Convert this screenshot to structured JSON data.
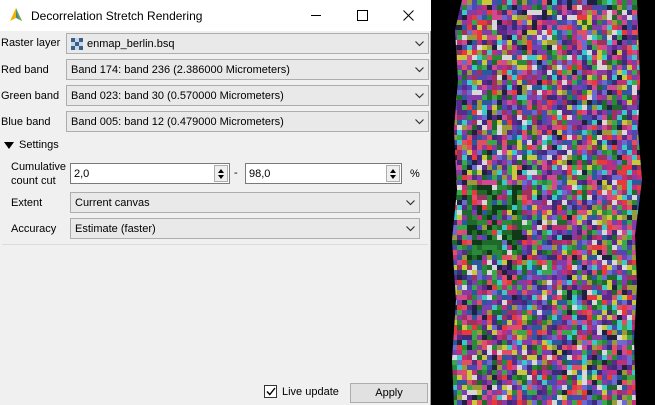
{
  "window": {
    "title": "Decorrelation Stretch Rendering",
    "accent_color": "#a3c83a"
  },
  "form": {
    "raster_layer": {
      "label": "Raster layer",
      "value": "enmap_berlin.bsq"
    },
    "red_band": {
      "label": "Red band",
      "value": "Band 174: band 236 (2.386000 Micrometers)"
    },
    "green_band": {
      "label": "Green band",
      "value": "Band 023: band 30 (0.570000 Micrometers)"
    },
    "blue_band": {
      "label": "Blue band",
      "value": "Band 005: band 12 (0.479000 Micrometers)"
    }
  },
  "settings": {
    "header": "Settings",
    "cumulative": {
      "label_line1": "Cumulative",
      "label_line2": "count cut",
      "min": "2,0",
      "separator": "-",
      "max": "98,0",
      "unit": "%"
    },
    "extent": {
      "label": "Extent",
      "value": "Current canvas"
    },
    "accuracy": {
      "label": "Accuracy",
      "value": "Estimate (faster)"
    }
  },
  "footer": {
    "live_update_label": "Live update",
    "live_update_checked": true,
    "apply_label": "Apply"
  },
  "map": {
    "icon": "rgb-satellite-image"
  }
}
